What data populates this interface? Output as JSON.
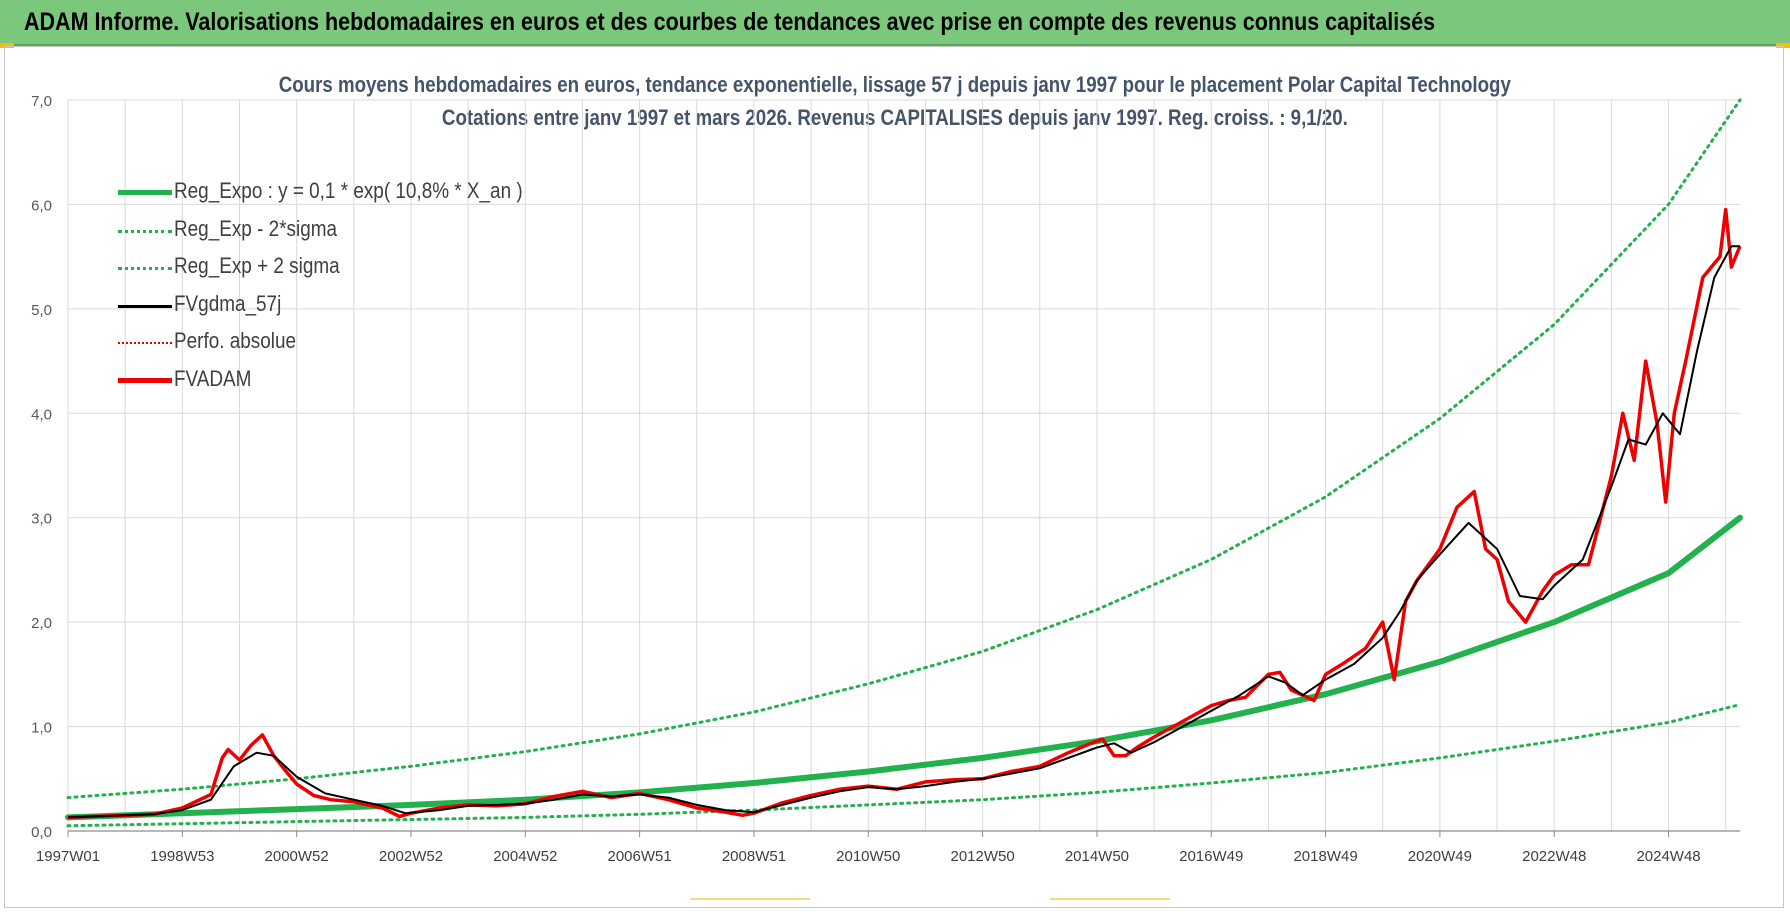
{
  "banner": {
    "title": "ADAM Informe. Valorisations hebdomadaires en euros et des courbes de tendances avec prise en compte des revenus connus capitalisés"
  },
  "colors": {
    "banner_bg": "#7bc77b",
    "title_text": "#44546a",
    "reg_expo": "#22b14c",
    "sigma": "#22b14c",
    "fvgdma": "#000000",
    "perfo": "#e00000",
    "fvadam": "#ee0000",
    "grid": "#d9d9d9"
  },
  "chart_data": {
    "type": "line",
    "title_line1": "Cours moyens hebdomadaires en euros, tendance exponentielle, lissage 57 j depuis janv 1997  pour le placement Polar Capital Technology",
    "title_line2": "Cotations entre janv 1997 et mars 2026. Revenus CAPITALISES depuis janv 1997. Reg. croiss. : 9,1/20.",
    "x_tick_labels": [
      "1997W01",
      "1998W53",
      "2000W52",
      "2002W52",
      "2004W52",
      "2006W51",
      "2008W51",
      "2010W50",
      "2012W50",
      "2014W50",
      "2016W49",
      "2018W49",
      "2020W49",
      "2022W48",
      "2024W48"
    ],
    "x_tick_years": [
      1997.0,
      1999.0,
      2001.0,
      2003.0,
      2005.0,
      2007.0,
      2009.0,
      2011.0,
      2013.0,
      2015.0,
      2017.0,
      2019.0,
      2021.0,
      2023.0,
      2025.0
    ],
    "xlim": [
      1997.0,
      2026.25
    ],
    "y_tick_labels": [
      "0,0",
      "1,0",
      "2,0",
      "3,0",
      "4,0",
      "5,0",
      "6,0",
      "7,0"
    ],
    "y_tick_values": [
      0,
      1,
      2,
      3,
      4,
      5,
      6,
      7
    ],
    "ylim": [
      0,
      7
    ],
    "legend": [
      {
        "label": "Reg_Expo : y = 0,1 * exp( 10,8% *  X_an )",
        "style": "solid-thick",
        "color": "#22b14c"
      },
      {
        "label": "Reg_Exp - 2*sigma",
        "style": "dotted",
        "color": "#22b14c"
      },
      {
        "label": "Reg_Exp + 2 sigma",
        "style": "dotted",
        "color": "#22b14c"
      },
      {
        "label": "FVgdma_57j",
        "style": "solid",
        "color": "#000000"
      },
      {
        "label": "Perfo. absolue",
        "style": "dotted-thin",
        "color": "#e00000"
      },
      {
        "label": "FVADAM",
        "style": "solid-thick",
        "color": "#ee0000"
      }
    ],
    "series": [
      {
        "name": "Reg_Expo",
        "x": [
          1997.0,
          1999.0,
          2001.0,
          2003.0,
          2005.0,
          2007.0,
          2009.0,
          2011.0,
          2013.0,
          2015.0,
          2017.0,
          2019.0,
          2021.0,
          2023.0,
          2025.0,
          2026.25
        ],
        "values": [
          0.13,
          0.17,
          0.21,
          0.25,
          0.3,
          0.37,
          0.46,
          0.57,
          0.7,
          0.86,
          1.06,
          1.31,
          1.62,
          2.0,
          2.47,
          3.0
        ]
      },
      {
        "name": "Reg_Exp - 2*sigma",
        "x": [
          1997.0,
          1999.0,
          2001.0,
          2003.0,
          2005.0,
          2007.0,
          2009.0,
          2011.0,
          2013.0,
          2015.0,
          2017.0,
          2019.0,
          2021.0,
          2023.0,
          2025.0,
          2026.25
        ],
        "values": [
          0.05,
          0.07,
          0.09,
          0.11,
          0.13,
          0.16,
          0.2,
          0.25,
          0.3,
          0.37,
          0.46,
          0.56,
          0.7,
          0.86,
          1.04,
          1.21
        ]
      },
      {
        "name": "Reg_Exp + 2 sigma",
        "x": [
          1997.0,
          1999.0,
          2001.0,
          2003.0,
          2005.0,
          2007.0,
          2009.0,
          2011.0,
          2013.0,
          2015.0,
          2017.0,
          2019.0,
          2021.0,
          2023.0,
          2025.0,
          2026.25
        ],
        "values": [
          0.32,
          0.4,
          0.5,
          0.62,
          0.76,
          0.93,
          1.14,
          1.41,
          1.72,
          2.12,
          2.6,
          3.2,
          3.95,
          4.85,
          6.0,
          7.0
        ]
      },
      {
        "name": "FVgdma_57j",
        "x": [
          1997.0,
          1998.0,
          1998.5,
          1999.0,
          1999.5,
          1999.9,
          2000.3,
          2000.6,
          2001.0,
          2001.5,
          2002.0,
          2002.5,
          2002.9,
          2003.5,
          2004.0,
          2004.5,
          2005.0,
          2005.5,
          2006.0,
          2006.5,
          2007.0,
          2007.5,
          2008.0,
          2008.5,
          2009.0,
          2009.5,
          2010.0,
          2010.5,
          2011.0,
          2011.5,
          2012.0,
          2012.5,
          2013.0,
          2013.5,
          2014.0,
          2014.5,
          2015.0,
          2015.3,
          2015.6,
          2016.0,
          2016.5,
          2017.0,
          2017.5,
          2018.0,
          2018.3,
          2018.6,
          2019.0,
          2019.5,
          2020.0,
          2020.3,
          2020.6,
          2021.0,
          2021.5,
          2022.0,
          2022.4,
          2022.8,
          2023.0,
          2023.5,
          2024.0,
          2024.3,
          2024.6,
          2024.9,
          2025.2,
          2025.5,
          2025.8,
          2026.1,
          2026.25
        ],
        "values": [
          0.13,
          0.15,
          0.16,
          0.2,
          0.3,
          0.62,
          0.75,
          0.72,
          0.52,
          0.36,
          0.3,
          0.24,
          0.17,
          0.2,
          0.24,
          0.25,
          0.26,
          0.3,
          0.35,
          0.33,
          0.35,
          0.32,
          0.25,
          0.2,
          0.18,
          0.25,
          0.32,
          0.38,
          0.42,
          0.4,
          0.43,
          0.47,
          0.5,
          0.55,
          0.6,
          0.7,
          0.8,
          0.84,
          0.75,
          0.85,
          1.0,
          1.15,
          1.3,
          1.48,
          1.42,
          1.3,
          1.45,
          1.6,
          1.85,
          2.1,
          2.4,
          2.65,
          2.95,
          2.7,
          2.25,
          2.22,
          2.35,
          2.6,
          3.3,
          3.75,
          3.7,
          4.0,
          3.8,
          4.6,
          5.3,
          5.6,
          5.6
        ]
      },
      {
        "name": "FVADAM",
        "x": [
          1997.0,
          1998.0,
          1998.5,
          1999.0,
          1999.5,
          1999.7,
          1999.8,
          2000.0,
          2000.2,
          2000.4,
          2000.6,
          2000.8,
          2001.0,
          2001.3,
          2001.6,
          2002.0,
          2002.5,
          2002.8,
          2003.0,
          2003.5,
          2004.0,
          2004.5,
          2005.0,
          2005.5,
          2006.0,
          2006.5,
          2007.0,
          2007.5,
          2008.0,
          2008.5,
          2008.8,
          2009.0,
          2009.5,
          2010.0,
          2010.5,
          2011.0,
          2011.5,
          2012.0,
          2012.5,
          2013.0,
          2013.5,
          2014.0,
          2014.5,
          2014.9,
          2015.1,
          2015.3,
          2015.5,
          2015.7,
          2016.0,
          2016.5,
          2017.0,
          2017.3,
          2017.6,
          2018.0,
          2018.2,
          2018.4,
          2018.6,
          2018.8,
          2019.0,
          2019.3,
          2019.7,
          2020.0,
          2020.2,
          2020.4,
          2020.6,
          2021.0,
          2021.3,
          2021.6,
          2021.8,
          2022.0,
          2022.2,
          2022.5,
          2022.8,
          2023.0,
          2023.3,
          2023.6,
          2024.0,
          2024.2,
          2024.4,
          2024.6,
          2024.8,
          2024.95,
          2025.1,
          2025.3,
          2025.6,
          2025.9,
          2026.0,
          2026.1,
          2026.25
        ],
        "values": [
          0.13,
          0.15,
          0.16,
          0.22,
          0.35,
          0.7,
          0.78,
          0.68,
          0.82,
          0.92,
          0.72,
          0.58,
          0.45,
          0.34,
          0.3,
          0.28,
          0.22,
          0.14,
          0.17,
          0.22,
          0.25,
          0.24,
          0.26,
          0.33,
          0.38,
          0.32,
          0.36,
          0.3,
          0.22,
          0.18,
          0.15,
          0.17,
          0.27,
          0.34,
          0.4,
          0.43,
          0.4,
          0.47,
          0.49,
          0.5,
          0.57,
          0.62,
          0.75,
          0.84,
          0.88,
          0.72,
          0.72,
          0.8,
          0.9,
          1.05,
          1.2,
          1.25,
          1.28,
          1.5,
          1.52,
          1.35,
          1.3,
          1.25,
          1.5,
          1.6,
          1.75,
          2.0,
          1.45,
          2.2,
          2.4,
          2.7,
          3.1,
          3.25,
          2.7,
          2.6,
          2.2,
          2.0,
          2.3,
          2.45,
          2.55,
          2.55,
          3.4,
          4.0,
          3.55,
          4.5,
          3.9,
          3.15,
          4.0,
          4.5,
          5.3,
          5.5,
          5.95,
          5.4,
          5.6
        ]
      }
    ]
  }
}
